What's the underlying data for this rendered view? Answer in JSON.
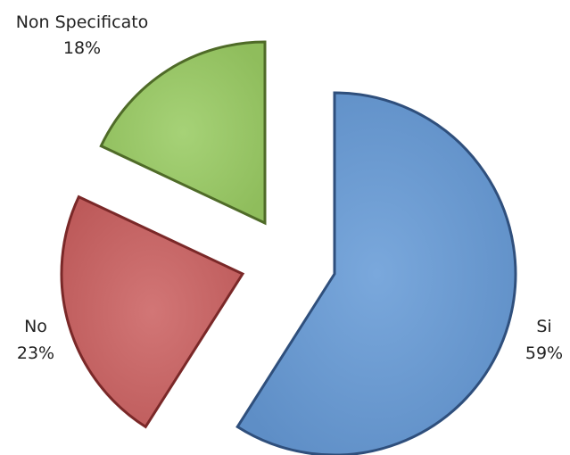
{
  "chart_data": {
    "type": "pie",
    "exploded": true,
    "slices": [
      {
        "name": "Si",
        "label": "Si",
        "percent_label": "59%",
        "value": 59,
        "color": "#6b9bd2"
      },
      {
        "name": "No",
        "label": "No",
        "percent_label": "23%",
        "value": 23,
        "color": "#c96464"
      },
      {
        "name": "Non Specificato",
        "label": "Non Specificato",
        "percent_label": "18%",
        "value": 18,
        "color": "#9bc96a"
      }
    ]
  }
}
